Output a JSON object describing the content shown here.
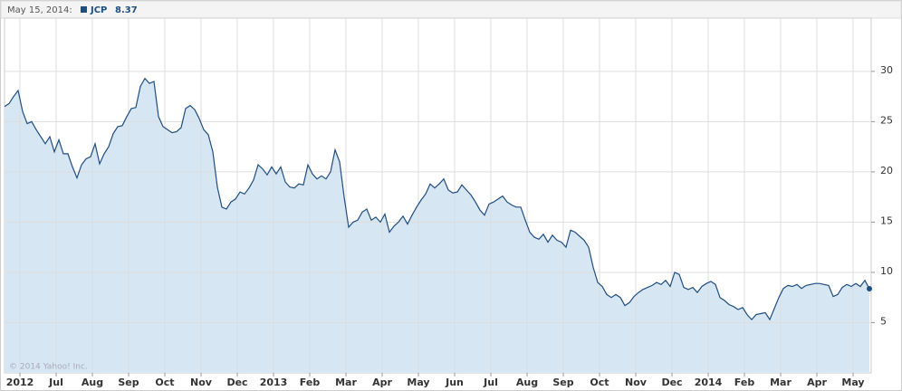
{
  "chart_data": {
    "type": "area",
    "date_label": "May 15, 2014:",
    "copyright": "© 2014 Yahoo! Inc.",
    "line_color": "#1f4e80",
    "fill_color": "#d6e6f2",
    "grid": true,
    "xlim": [
      -0.425,
      23.5
    ],
    "ylim": [
      0,
      35.3
    ],
    "yticks": [
      5,
      10,
      15,
      20,
      25,
      30
    ],
    "xticks": [
      {
        "value": 0,
        "label": "2012"
      },
      {
        "value": 1,
        "label": "Jul"
      },
      {
        "value": 2,
        "label": "Aug"
      },
      {
        "value": 3,
        "label": "Sep"
      },
      {
        "value": 4,
        "label": "Oct"
      },
      {
        "value": 5,
        "label": "Nov"
      },
      {
        "value": 6,
        "label": "Dec"
      },
      {
        "value": 7,
        "label": "2013"
      },
      {
        "value": 8,
        "label": "Feb"
      },
      {
        "value": 9,
        "label": "Mar"
      },
      {
        "value": 10,
        "label": "Apr"
      },
      {
        "value": 11,
        "label": "May"
      },
      {
        "value": 12,
        "label": "Jun"
      },
      {
        "value": 13,
        "label": "Jul"
      },
      {
        "value": 14,
        "label": "Aug"
      },
      {
        "value": 15,
        "label": "Sep"
      },
      {
        "value": 16,
        "label": "Oct"
      },
      {
        "value": 17,
        "label": "Nov"
      },
      {
        "value": 18,
        "label": "Dec"
      },
      {
        "value": 19,
        "label": "2014"
      },
      {
        "value": 20,
        "label": "Feb"
      },
      {
        "value": 21,
        "label": "Mar"
      },
      {
        "value": 22,
        "label": "Apr"
      },
      {
        "value": 23,
        "label": "May"
      }
    ],
    "x": [
      -0.425,
      -0.3,
      -0.175,
      -0.05,
      0.075,
      0.2,
      0.325,
      0.45,
      0.575,
      0.7,
      0.825,
      0.95,
      1.075,
      1.2,
      1.325,
      1.45,
      1.575,
      1.7,
      1.825,
      1.95,
      2.075,
      2.2,
      2.325,
      2.45,
      2.575,
      2.7,
      2.825,
      2.95,
      3.075,
      3.2,
      3.325,
      3.45,
      3.575,
      3.7,
      3.825,
      3.95,
      4.075,
      4.2,
      4.325,
      4.45,
      4.575,
      4.7,
      4.825,
      4.95,
      5.075,
      5.2,
      5.325,
      5.45,
      5.575,
      5.7,
      5.825,
      5.95,
      6.075,
      6.2,
      6.325,
      6.45,
      6.575,
      6.7,
      6.825,
      6.95,
      7.075,
      7.2,
      7.325,
      7.45,
      7.575,
      7.7,
      7.825,
      7.95,
      8.075,
      8.2,
      8.325,
      8.45,
      8.575,
      8.7,
      8.825,
      8.95,
      9.075,
      9.2,
      9.325,
      9.45,
      9.575,
      9.7,
      9.825,
      9.95,
      10.075,
      10.2,
      10.325,
      10.45,
      10.575,
      10.7,
      10.825,
      10.95,
      11.075,
      11.2,
      11.325,
      11.45,
      11.575,
      11.7,
      11.825,
      11.95,
      12.075,
      12.2,
      12.325,
      12.45,
      12.575,
      12.7,
      12.825,
      12.95,
      13.075,
      13.2,
      13.325,
      13.45,
      13.575,
      13.7,
      13.825,
      13.95,
      14.075,
      14.2,
      14.325,
      14.45,
      14.575,
      14.7,
      14.825,
      14.95,
      15.075,
      15.2,
      15.325,
      15.45,
      15.575,
      15.7,
      15.825,
      15.95,
      16.075,
      16.2,
      16.325,
      16.45,
      16.575,
      16.7,
      16.825,
      16.95,
      17.075,
      17.2,
      17.325,
      17.45,
      17.575,
      17.7,
      17.825,
      17.95,
      18.075,
      18.2,
      18.325,
      18.45,
      18.575,
      18.7,
      18.825,
      18.95,
      19.075,
      19.2,
      19.325,
      19.45,
      19.575,
      19.7,
      19.825,
      19.95,
      20.075,
      20.2,
      20.325,
      20.45,
      20.575,
      20.7,
      20.825,
      20.95,
      21.075,
      21.2,
      21.325,
      21.45,
      21.575,
      21.7,
      21.825,
      21.95,
      22.075,
      22.2,
      22.325,
      22.45,
      22.575,
      22.7,
      22.825,
      22.95,
      23.075,
      23.2,
      23.325,
      23.45
    ],
    "series": [
      {
        "name": "JCP",
        "values": [
          26.5,
          26.8,
          27.5,
          28.1,
          26,
          24.8,
          25.0,
          24.2,
          23.5,
          22.8,
          23.5,
          22,
          23.2,
          21.8,
          21.8,
          20.5,
          19.4,
          20.7,
          21.3,
          21.5,
          22.8,
          20.8,
          21.8,
          22.5,
          23.8,
          24.5,
          24.6,
          25.5,
          26.3,
          26.4,
          28.5,
          29.3,
          28.8,
          29.0,
          25.5,
          24.5,
          24.2,
          23.9,
          24.0,
          24.4,
          26.3,
          26.6,
          26.2,
          25.3,
          24.2,
          23.7,
          22.0,
          18.5,
          16.5,
          16.3,
          17.0,
          17.3,
          18.0,
          17.8,
          18.4,
          19.2,
          20.7,
          20.3,
          19.7,
          20.5,
          19.8,
          20.5,
          19.0,
          18.5,
          18.4,
          18.8,
          18.7,
          20.7,
          19.8,
          19.3,
          19.6,
          19.3,
          20.0,
          22.2,
          21.0,
          17.5,
          14.5,
          15.0,
          15.2,
          16.0,
          16.3,
          15.2,
          15.5,
          15.0,
          15.8,
          14.0,
          14.6,
          15.0,
          15.6,
          14.8,
          15.7,
          16.5,
          17.2,
          17.8,
          18.8,
          18.4,
          18.8,
          19.3,
          18.2,
          17.9,
          18.0,
          18.7,
          18.2,
          17.7,
          17.0,
          16.2,
          15.7,
          16.8,
          17.0,
          17.3,
          17.6,
          17.0,
          16.7,
          16.5,
          16.5,
          15.2,
          14.0,
          13.5,
          13.3,
          13.8,
          13.0,
          13.7,
          13.2,
          13.0,
          12.5,
          14.2,
          14.0,
          13.6,
          13.2,
          12.5,
          10.5,
          9.0,
          8.6,
          7.8,
          7.5,
          7.8,
          7.5,
          6.7,
          7.0,
          7.6,
          8.0,
          8.3,
          8.5,
          8.7,
          9.0,
          8.8,
          9.2,
          8.6,
          10.0,
          9.8,
          8.5,
          8.3,
          8.5,
          8.0,
          8.6,
          8.9,
          9.1,
          8.8,
          7.5,
          7.2,
          6.8,
          6.6,
          6.3,
          6.5,
          5.8,
          5.3,
          5.8,
          5.9,
          6.0,
          5.3,
          6.4,
          7.5,
          8.4,
          8.7,
          8.6,
          8.8,
          8.4,
          8.7,
          8.8,
          8.9,
          8.9,
          8.8,
          8.7,
          7.6,
          7.8,
          8.5,
          8.8,
          8.6,
          8.9,
          8.6,
          9.2,
          8.37
        ]
      }
    ]
  }
}
